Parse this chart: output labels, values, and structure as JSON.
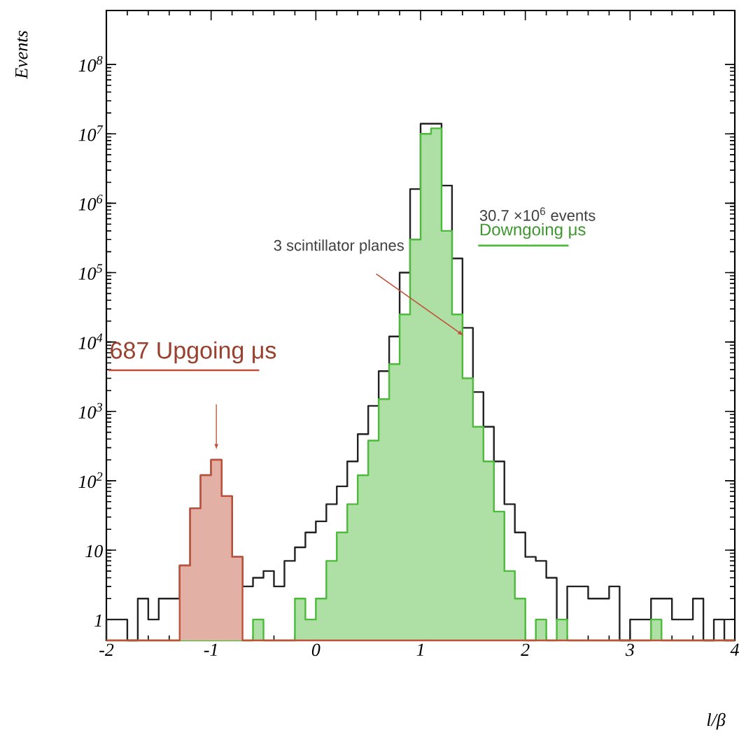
{
  "chart_data": {
    "type": "histogram",
    "xlabel": "l/β",
    "ylabel": "Events",
    "log": "y",
    "xlim": [
      -2,
      4
    ],
    "ylim": [
      0.5,
      600000000
    ],
    "xticks": [
      -2,
      -1,
      0,
      1,
      2,
      3,
      4
    ],
    "yticks": [
      1,
      10,
      {
        "value": 100,
        "label": "10$^{2}$"
      },
      {
        "value": 1000,
        "label": "10$^{3}$"
      },
      {
        "value": 10000,
        "label": "10$^{4}$"
      },
      {
        "value": 100000,
        "label": "10$^{5}$"
      },
      {
        "value": 1000000,
        "label": "10$^{6}$"
      },
      {
        "value": 10000000,
        "label": "10$^{7}$"
      },
      {
        "value": 100000000,
        "label": "10$^{8}$"
      }
    ],
    "bins": [
      -2,
      -1.9,
      -1.8,
      -1.7,
      -1.6,
      -1.5,
      -1.4,
      -1.3,
      -1.2,
      -1.1,
      -1,
      -0.9,
      -0.8,
      -0.7,
      -0.6,
      -0.5,
      -0.4,
      -0.3,
      -0.2,
      -0.1,
      0,
      0.1,
      0.2,
      0.3,
      0.4,
      0.5,
      0.6,
      0.7,
      0.8,
      0.9,
      1,
      1.1,
      1.2,
      1.3,
      1.4,
      1.5,
      1.6,
      1.7,
      1.8,
      1.9,
      2,
      2.1,
      2.2,
      2.3,
      2.4,
      2.5,
      2.6,
      2.7,
      2.8,
      2.9,
      3,
      3.1,
      3.2,
      3.3,
      3.4,
      3.5,
      3.6,
      3.7,
      3.8,
      3.9,
      4
    ],
    "series": [
      {
        "color": "#222222",
        "values": [
          1,
          1,
          null,
          2,
          1,
          2,
          2,
          6,
          40,
          120,
          200,
          60,
          8,
          3,
          4,
          5,
          3,
          7,
          11,
          18,
          26,
          46,
          83,
          190,
          470,
          1200,
          3800,
          12000,
          100000,
          1600000,
          14000000,
          14000000,
          1800000,
          160000,
          16000,
          1900,
          600,
          190,
          46,
          18,
          8,
          7,
          4,
          1,
          3,
          3,
          2,
          2,
          3,
          null,
          1,
          1,
          2,
          2,
          1,
          1,
          2,
          null,
          1,
          null
        ]
      },
      {
        "name": "Downgoing μs",
        "color": "#4cbb3a",
        "values": [
          null,
          null,
          null,
          null,
          null,
          null,
          null,
          null,
          null,
          null,
          null,
          null,
          null,
          null,
          1,
          null,
          null,
          null,
          2,
          1,
          2,
          7,
          18,
          46,
          120,
          380,
          1500,
          4800,
          25000,
          300000,
          10000000,
          12000000,
          400000,
          25000,
          3000,
          600,
          190,
          36,
          5,
          2,
          null,
          1,
          null,
          1,
          null,
          null,
          null,
          null,
          null,
          null,
          null,
          null,
          1,
          null,
          null,
          null,
          null,
          null,
          null,
          null
        ]
      },
      {
        "name": "687 Upgoing μs",
        "color": "#c0503a",
        "values": [
          null,
          null,
          null,
          null,
          null,
          null,
          null,
          6,
          40,
          120,
          200,
          60,
          8,
          null,
          null,
          null,
          null,
          null,
          null,
          null,
          null,
          null,
          null,
          null,
          null,
          null,
          null,
          null,
          null,
          null,
          null,
          null,
          null,
          null,
          null,
          null,
          null,
          null,
          null,
          null,
          null,
          null,
          null,
          null,
          null,
          null,
          null,
          null,
          null,
          null,
          null,
          null,
          null,
          null,
          null,
          null,
          null,
          null,
          null,
          null
        ]
      }
    ],
    "annotations": [
      "3 scintillator planes",
      "30.7 ×10$^{6}$ events"
    ]
  }
}
